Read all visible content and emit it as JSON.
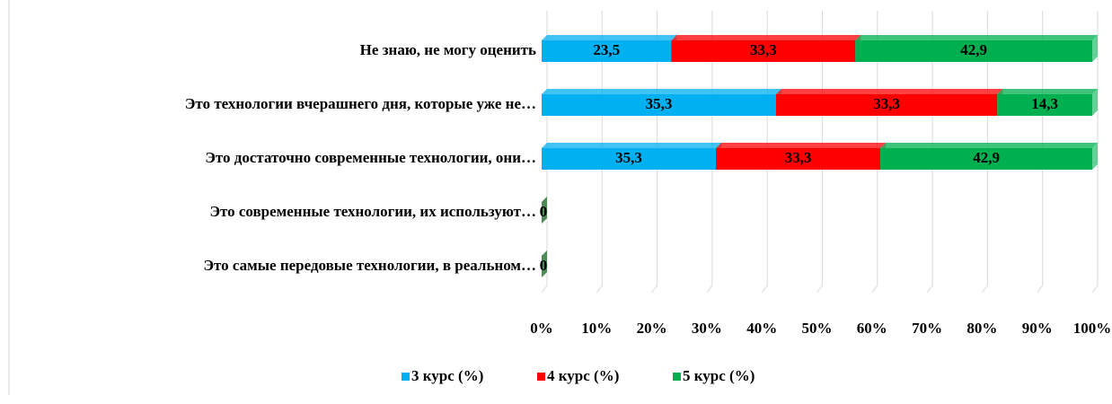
{
  "chart_data": {
    "type": "bar_stacked_percent",
    "orientation": "horizontal",
    "categories": [
      "Не знаю, не могу оценить",
      "Это технологии вчерашнего дня, которые уже не…",
      "Это достаточно современные технологии, они…",
      "Это современные технологии, их используют…",
      "Это самые передовые технологии, в реальном…"
    ],
    "series": [
      {
        "name": "3 курс (%)",
        "color": "#00b0f0",
        "values": [
          23.5,
          35.3,
          35.3,
          0,
          0
        ],
        "value_labels": [
          "23,5",
          "35,3",
          "35,3",
          "0",
          "0"
        ]
      },
      {
        "name": "4 курс (%)",
        "color": "#ff0000",
        "values": [
          33.3,
          33.3,
          33.3,
          0,
          0
        ],
        "value_labels": [
          "33,3",
          "33,3",
          "33,3",
          "0",
          "0"
        ]
      },
      {
        "name": "5 курс (%)",
        "color": "#00b050",
        "values": [
          42.9,
          14.3,
          42.9,
          0,
          0
        ],
        "value_labels": [
          "42,9",
          "14,3",
          "42,9",
          "0",
          "0"
        ]
      }
    ],
    "xlim": [
      0,
      100
    ],
    "xticks": [
      {
        "value": 0,
        "label": "0%"
      },
      {
        "value": 10,
        "label": "10%"
      },
      {
        "value": 20,
        "label": "20%"
      },
      {
        "value": 30,
        "label": "30%"
      },
      {
        "value": 40,
        "label": "40%"
      },
      {
        "value": 50,
        "label": "50%"
      },
      {
        "value": 60,
        "label": "60%"
      },
      {
        "value": 70,
        "label": "70%"
      },
      {
        "value": 80,
        "label": "80%"
      },
      {
        "value": 90,
        "label": "90%"
      },
      {
        "value": 100,
        "label": "100%"
      }
    ],
    "grid": true,
    "legend": "bottom"
  }
}
